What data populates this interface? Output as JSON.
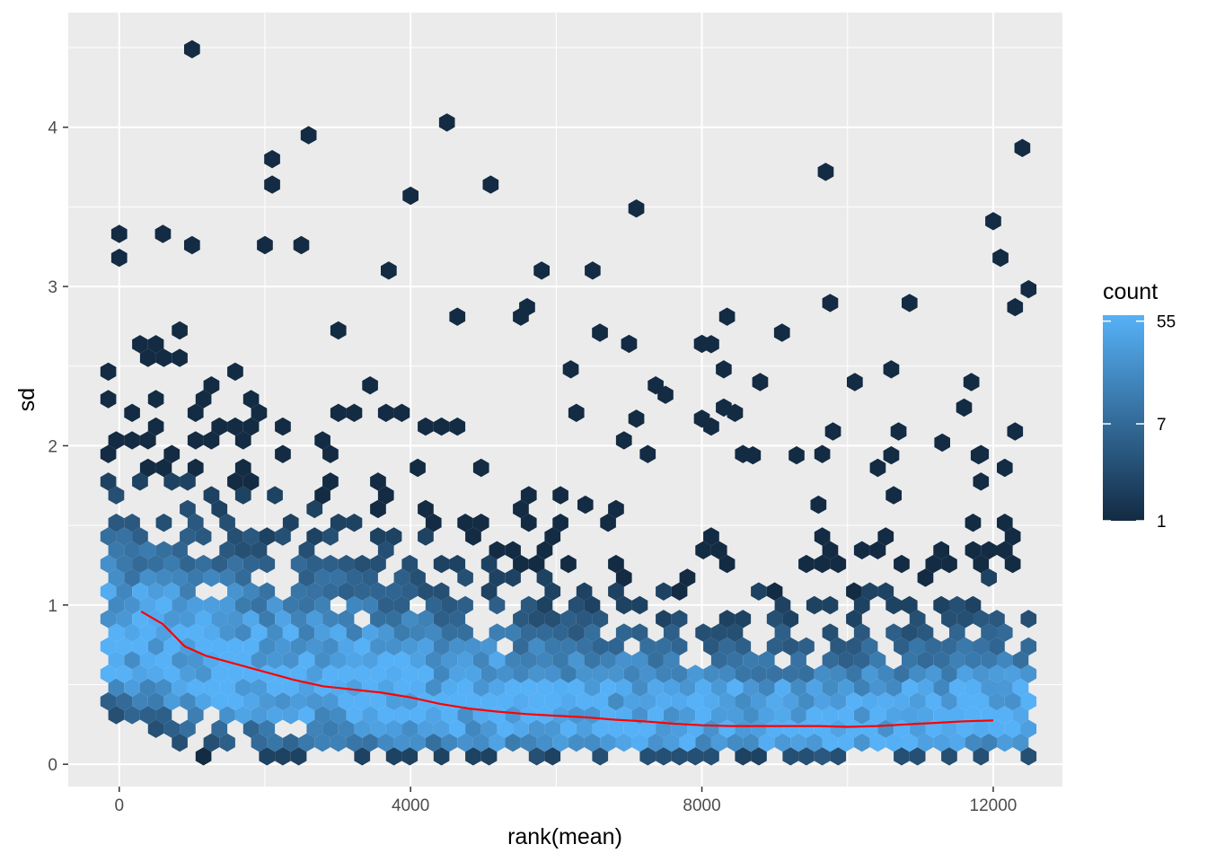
{
  "chart_data": {
    "type": "hexbin",
    "title": "",
    "xlabel": "rank(mean)",
    "ylabel": "sd",
    "xlim": [
      -700,
      12950
    ],
    "ylim": [
      -0.14,
      4.72
    ],
    "x_ticks": [
      {
        "value": 0,
        "label": "0"
      },
      {
        "value": 4000,
        "label": "4000"
      },
      {
        "value": 8000,
        "label": "8000"
      },
      {
        "value": 12000,
        "label": "12000"
      }
    ],
    "y_ticks": [
      {
        "value": 0,
        "label": "0"
      },
      {
        "value": 1,
        "label": "1"
      },
      {
        "value": 2,
        "label": "2"
      },
      {
        "value": 3,
        "label": "3"
      },
      {
        "value": 4,
        "label": "4"
      }
    ],
    "grid": true,
    "background": "#ebebeb",
    "legend": {
      "title": "count",
      "position": "right",
      "scale": "log",
      "low_color": "#132b43",
      "high_color": "#56b1f7",
      "breaks": [
        {
          "value": 1,
          "label": "1"
        },
        {
          "value": 7,
          "label": "7"
        },
        {
          "value": 55,
          "label": "55"
        }
      ],
      "range": [
        1,
        62
      ]
    },
    "trend_line": {
      "color": "#ff0000",
      "x": [
        300,
        600,
        900,
        1200,
        1600,
        2000,
        2400,
        2800,
        3200,
        3600,
        4000,
        4400,
        4800,
        5200,
        5600,
        6000,
        6400,
        6800,
        7200,
        7600,
        8000,
        8400,
        8800,
        9200,
        9600,
        10000,
        10400,
        10800,
        11200,
        11600,
        12000
      ],
      "y": [
        0.96,
        0.88,
        0.74,
        0.68,
        0.63,
        0.58,
        0.53,
        0.49,
        0.47,
        0.45,
        0.42,
        0.38,
        0.35,
        0.33,
        0.315,
        0.305,
        0.295,
        0.28,
        0.27,
        0.255,
        0.245,
        0.24,
        0.24,
        0.24,
        0.24,
        0.235,
        0.24,
        0.25,
        0.26,
        0.27,
        0.275
      ]
    },
    "outliers": [
      {
        "x": 1000,
        "y": 4.49
      },
      {
        "x": 4500,
        "y": 4.03
      },
      {
        "x": 2600,
        "y": 3.95
      },
      {
        "x": 12400,
        "y": 3.87
      },
      {
        "x": 2100,
        "y": 3.8
      },
      {
        "x": 9700,
        "y": 3.72
      },
      {
        "x": 2100,
        "y": 3.64
      },
      {
        "x": 5100,
        "y": 3.64
      },
      {
        "x": 4000,
        "y": 3.57
      },
      {
        "x": 7100,
        "y": 3.49
      },
      {
        "x": 12000,
        "y": 3.41
      },
      {
        "x": 0,
        "y": 3.33
      },
      {
        "x": 600,
        "y": 3.33
      },
      {
        "x": 1000,
        "y": 3.26
      },
      {
        "x": 2000,
        "y": 3.26
      },
      {
        "x": 2500,
        "y": 3.26
      },
      {
        "x": 12100,
        "y": 3.18
      },
      {
        "x": 0,
        "y": 3.18
      },
      {
        "x": 5800,
        "y": 3.1
      },
      {
        "x": 6500,
        "y": 3.1
      },
      {
        "x": 3700,
        "y": 3.1
      },
      {
        "x": 12300,
        "y": 2.87
      },
      {
        "x": 5600,
        "y": 2.87
      },
      {
        "x": 9100,
        "y": 2.71
      },
      {
        "x": 6600,
        "y": 2.71
      },
      {
        "x": 7000,
        "y": 2.64
      },
      {
        "x": 8000,
        "y": 2.64
      },
      {
        "x": 6200,
        "y": 2.48
      },
      {
        "x": 8300,
        "y": 2.48
      },
      {
        "x": 10600,
        "y": 2.48
      },
      {
        "x": 8800,
        "y": 2.4
      },
      {
        "x": 10100,
        "y": 2.4
      },
      {
        "x": 11700,
        "y": 2.4
      },
      {
        "x": 7500,
        "y": 2.32
      },
      {
        "x": 8300,
        "y": 2.24
      },
      {
        "x": 11600,
        "y": 2.24
      },
      {
        "x": 7100,
        "y": 2.17
      },
      {
        "x": 8000,
        "y": 2.17
      },
      {
        "x": 12300,
        "y": 2.09
      },
      {
        "x": 10700,
        "y": 2.09
      },
      {
        "x": 9800,
        "y": 2.09
      },
      {
        "x": 11300,
        "y": 2.02
      },
      {
        "x": 11800,
        "y": 1.94
      },
      {
        "x": 10600,
        "y": 1.94
      },
      {
        "x": 9300,
        "y": 1.94
      },
      {
        "x": 8700,
        "y": 1.94
      },
      {
        "x": 9600,
        "y": 1.63
      },
      {
        "x": 6400,
        "y": 1.63
      }
    ],
    "density": {
      "description_free": true,
      "ridge": [
        {
          "x": 0,
          "y": 0.75,
          "spread": 0.55
        },
        {
          "x": 1000,
          "y": 0.62,
          "spread": 0.55
        },
        {
          "x": 2000,
          "y": 0.52,
          "spread": 0.55
        },
        {
          "x": 3000,
          "y": 0.46,
          "spread": 0.55
        },
        {
          "x": 4000,
          "y": 0.4,
          "spread": 0.5
        },
        {
          "x": 5000,
          "y": 0.33,
          "spread": 0.45
        },
        {
          "x": 6000,
          "y": 0.3,
          "spread": 0.42
        },
        {
          "x": 7000,
          "y": 0.27,
          "spread": 0.4
        },
        {
          "x": 8000,
          "y": 0.24,
          "spread": 0.38
        },
        {
          "x": 9000,
          "y": 0.24,
          "spread": 0.38
        },
        {
          "x": 10000,
          "y": 0.23,
          "spread": 0.38
        },
        {
          "x": 11000,
          "y": 0.25,
          "spread": 0.4
        },
        {
          "x": 12000,
          "y": 0.27,
          "spread": 0.42
        }
      ],
      "upper_envelope": [
        {
          "x": 0,
          "y": 2.8
        },
        {
          "x": 1000,
          "y": 2.6
        },
        {
          "x": 2000,
          "y": 2.5
        },
        {
          "x": 3000,
          "y": 2.3
        },
        {
          "x": 4000,
          "y": 2.0
        },
        {
          "x": 5000,
          "y": 1.9
        },
        {
          "x": 6000,
          "y": 1.7
        },
        {
          "x": 7000,
          "y": 1.6
        },
        {
          "x": 8000,
          "y": 1.5
        },
        {
          "x": 9000,
          "y": 1.45
        },
        {
          "x": 10000,
          "y": 1.45
        },
        {
          "x": 11000,
          "y": 1.5
        },
        {
          "x": 12000,
          "y": 1.6
        }
      ]
    }
  }
}
